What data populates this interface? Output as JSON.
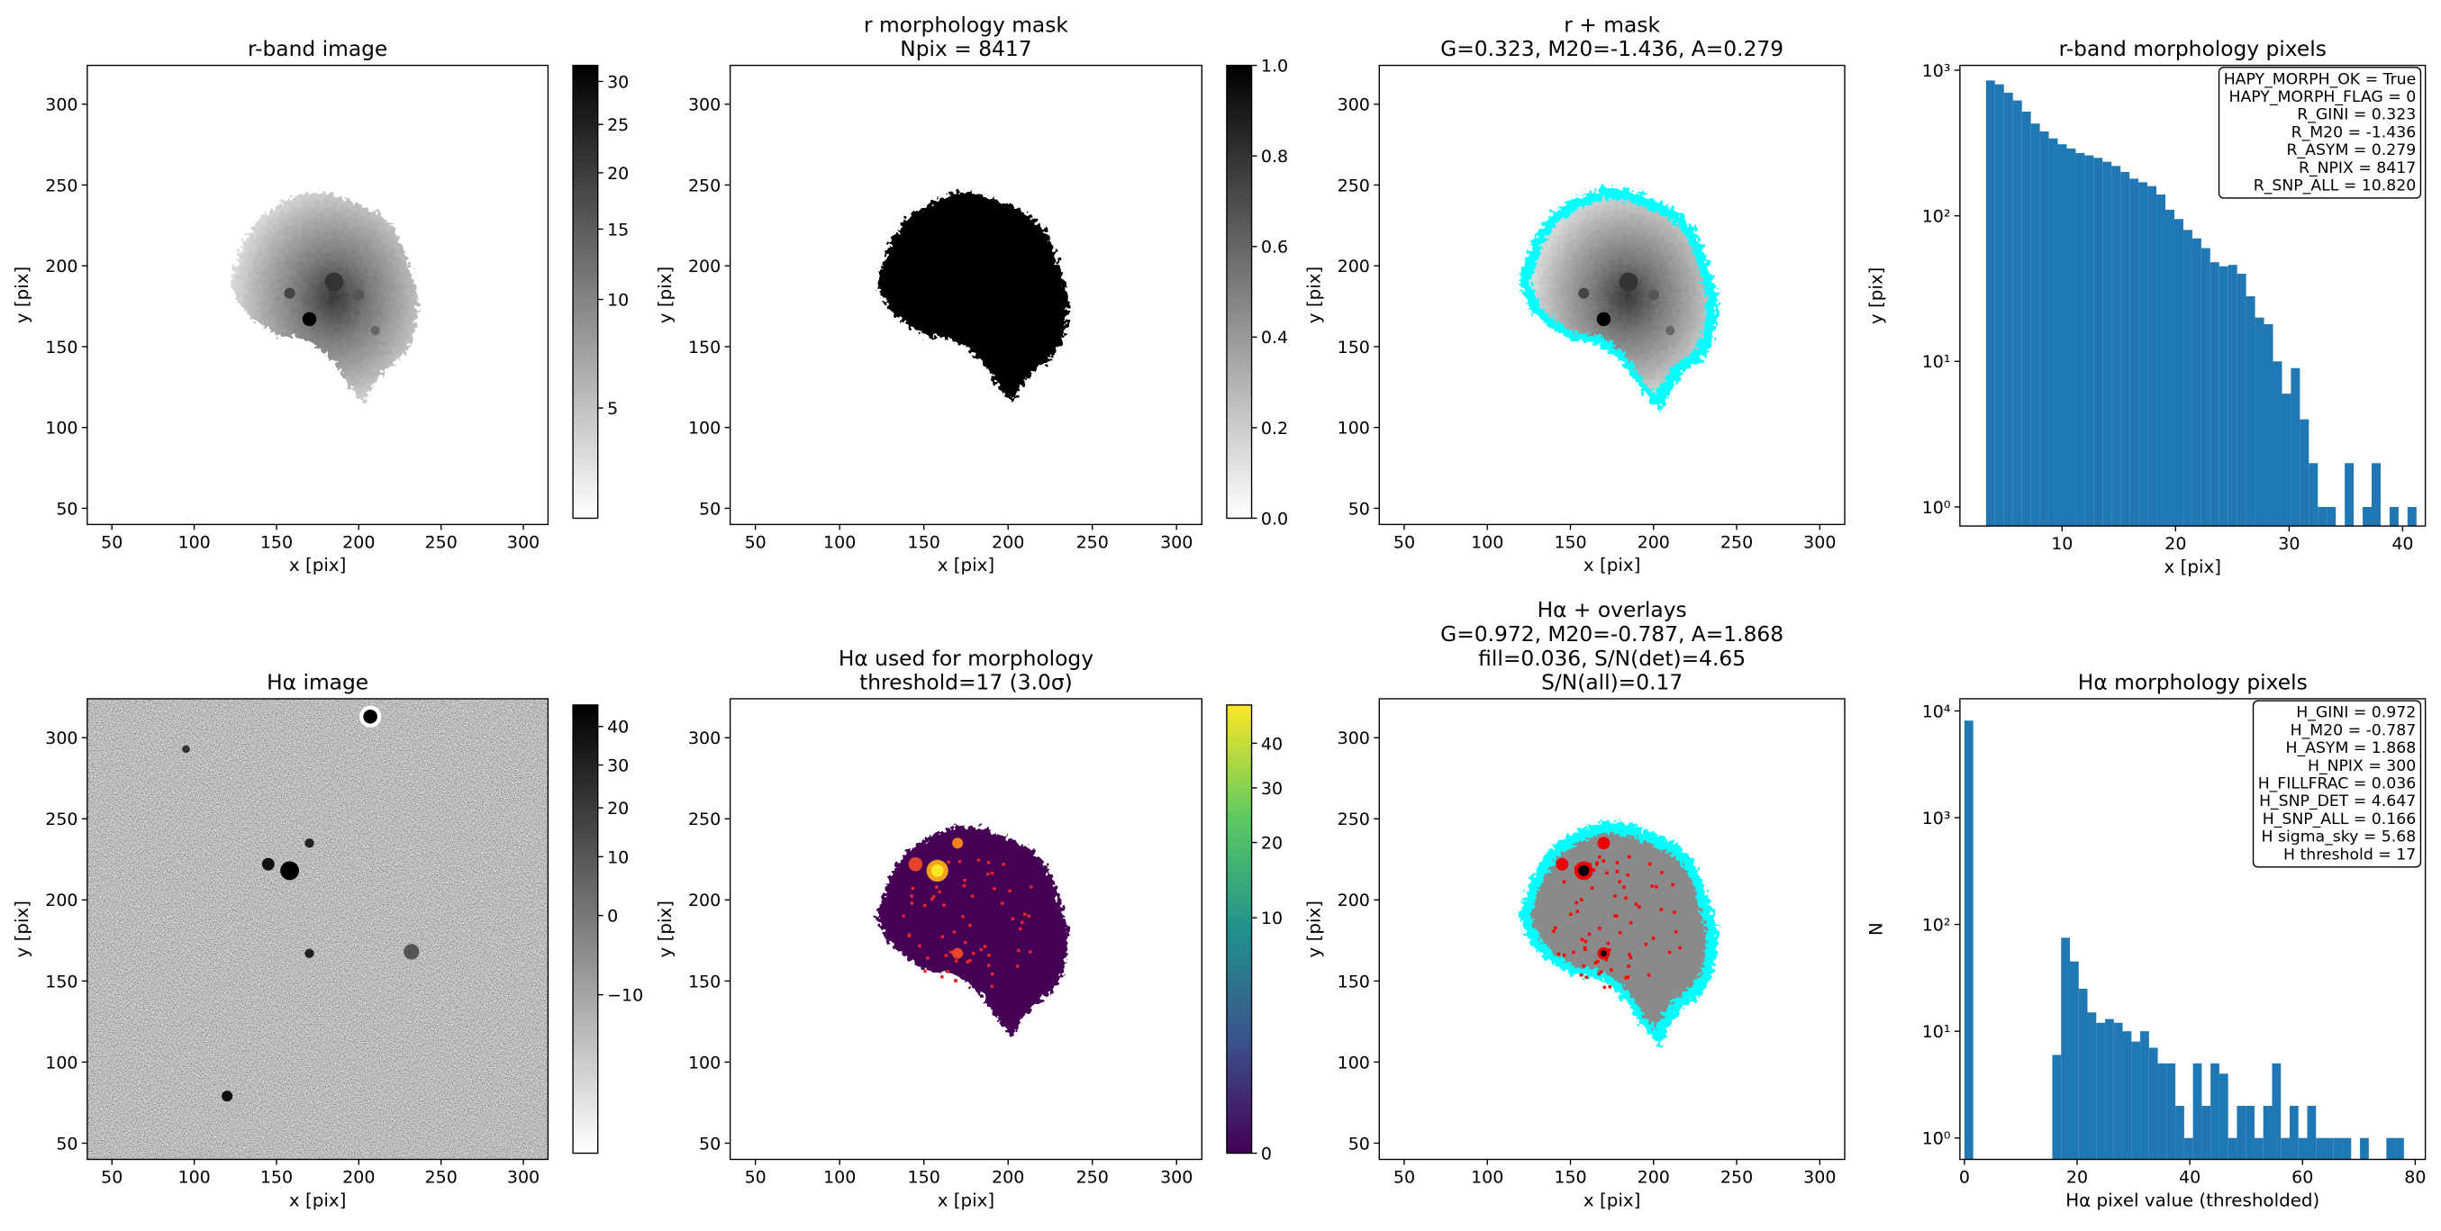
{
  "chart_data": [
    {
      "type": "image",
      "title": [
        "r-band image"
      ],
      "xlabel": "x [pix]",
      "ylabel": "y [pix]",
      "xlim": [
        35,
        315
      ],
      "ylim": [
        40,
        324
      ],
      "xticks": [
        50,
        100,
        150,
        200,
        250,
        300
      ],
      "yticks": [
        50,
        100,
        150,
        200,
        250,
        300
      ],
      "colorbar": {
        "lim": [
          3.3,
          32
        ],
        "gamma": 0.5,
        "cmap": "gray_r",
        "ticks": [
          5,
          10,
          15,
          20,
          25,
          30
        ]
      }
    },
    {
      "type": "image",
      "title": [
        "r morphology mask",
        "Npix = 8417"
      ],
      "xlabel": "x [pix]",
      "ylabel": "y [pix]",
      "xlim": [
        35,
        315
      ],
      "ylim": [
        40,
        324
      ],
      "xticks": [
        50,
        100,
        150,
        200,
        250,
        300
      ],
      "yticks": [
        50,
        100,
        150,
        200,
        250,
        300
      ],
      "colorbar": {
        "lim": [
          0,
          1
        ],
        "gamma": 1,
        "cmap": "gray_r",
        "ticks": [
          {
            "value": 0,
            "label": "0.0"
          },
          {
            "value": 0.2,
            "label": "0.2"
          },
          {
            "value": 0.4,
            "label": "0.4"
          },
          {
            "value": 0.6,
            "label": "0.6"
          },
          {
            "value": 0.8,
            "label": "0.8"
          },
          {
            "value": 1,
            "label": "1.0"
          }
        ]
      }
    },
    {
      "type": "image",
      "title": [
        "r + mask",
        "G=0.323, M20=-1.436, A=0.279"
      ],
      "xlabel": "x [pix]",
      "ylabel": "y [pix]",
      "xlim": [
        35,
        315
      ],
      "ylim": [
        40,
        324
      ],
      "xticks": [
        50,
        100,
        150,
        200,
        250,
        300
      ],
      "yticks": [
        50,
        100,
        150,
        200,
        250,
        300
      ]
    },
    {
      "type": "histogram",
      "title": [
        "r-band morphology pixels"
      ],
      "xlabel": "x [pix]",
      "ylabel": "y [pix]",
      "color": "#1f77b4",
      "yscale": "log",
      "xlim": [
        1,
        42
      ],
      "ylim": [
        0.74,
        1080
      ],
      "xticks": [
        10,
        20,
        30,
        40
      ],
      "yticks": [
        {
          "value": 1,
          "label": "10⁰"
        },
        {
          "value": 10,
          "label": "10¹"
        },
        {
          "value": 100,
          "label": "10²"
        },
        {
          "value": 1000,
          "label": "10³"
        }
      ],
      "bins": [
        3.3,
        4.09,
        4.88,
        5.67,
        6.46,
        7.25,
        8.04,
        8.83,
        9.62,
        10.41,
        11.2,
        11.99,
        12.78,
        13.57,
        14.36,
        15.15,
        15.94,
        16.73,
        17.52,
        18.31,
        19.1,
        19.89,
        20.68,
        21.47,
        22.26,
        23.05,
        23.84,
        24.63,
        25.42,
        26.21,
        27.0,
        27.79,
        28.58,
        29.37,
        30.16,
        30.95,
        31.74,
        32.53,
        33.32,
        34.11,
        34.9,
        35.69,
        36.48,
        37.27,
        38.06,
        38.85,
        39.64,
        40.43,
        41.22
      ],
      "values": [
        850,
        800,
        700,
        620,
        520,
        430,
        380,
        340,
        310,
        290,
        270,
        260,
        250,
        235,
        220,
        200,
        180,
        170,
        160,
        140,
        110,
        95,
        80,
        70,
        60,
        48,
        45,
        46,
        40,
        28,
        20,
        18,
        10,
        6,
        9,
        4,
        2,
        1,
        1,
        0,
        2,
        0,
        1,
        2,
        0,
        1,
        0,
        1
      ],
      "annotation_loc": "upper right",
      "annotation": [
        "HAPY_MORPH_OK = True",
        "HAPY_MORPH_FLAG = 0",
        "R_GINI = 0.323",
        "R_M20 = -1.436",
        "R_ASYM = 0.279",
        "R_NPIX = 8417",
        "R_SNP_ALL = 10.820"
      ]
    },
    {
      "type": "image",
      "title": [
        "Hα image"
      ],
      "xlabel": "x [pix]",
      "ylabel": "y [pix]",
      "xlim": [
        35,
        315
      ],
      "ylim": [
        40,
        324
      ],
      "xticks": [
        50,
        100,
        150,
        200,
        250,
        300
      ],
      "yticks": [
        50,
        100,
        150,
        200,
        250,
        300
      ],
      "colorbar": {
        "lim": [
          -18,
          46
        ],
        "gamma": 0.5,
        "cmap": "gray_r",
        "ticks": [
          {
            "value": -10,
            "label": "−10"
          },
          0,
          10,
          20,
          30,
          40
        ]
      }
    },
    {
      "type": "image",
      "title": [
        "Hα used for morphology",
        "threshold=17 (3.0σ)"
      ],
      "xlabel": "x [pix]",
      "ylabel": "y [pix]",
      "xlim": [
        35,
        315
      ],
      "ylim": [
        40,
        324
      ],
      "xticks": [
        50,
        100,
        150,
        200,
        250,
        300
      ],
      "yticks": [
        50,
        100,
        150,
        200,
        250,
        300
      ],
      "colorbar": {
        "lim": [
          0,
          50
        ],
        "gamma": 0.4,
        "cmap": "viridis",
        "ticks": [
          0,
          10,
          20,
          30,
          40
        ]
      }
    },
    {
      "type": "image",
      "title": [
        "Hα + overlays",
        "G=0.972, M20=-0.787, A=1.868",
        "fill=0.036, S/N(det)=4.65",
        "S/N(all)=0.17"
      ],
      "xlabel": "x [pix]",
      "ylabel": "y [pix]",
      "xlim": [
        35,
        315
      ],
      "ylim": [
        40,
        324
      ],
      "xticks": [
        50,
        100,
        150,
        200,
        250,
        300
      ],
      "yticks": [
        50,
        100,
        150,
        200,
        250,
        300
      ]
    },
    {
      "type": "histogram",
      "title": [
        "Hα morphology pixels"
      ],
      "xlabel": "Hα pixel value (thresholded)",
      "ylabel": "N",
      "color": "#1f77b4",
      "yscale": "log",
      "xlim": [
        -0.8,
        81.8
      ],
      "ylim": [
        0.63,
        13000
      ],
      "xticks": [
        0,
        20,
        40,
        60,
        80
      ],
      "yticks": [
        {
          "value": 1,
          "label": "10⁰"
        },
        {
          "value": 10,
          "label": "10¹"
        },
        {
          "value": 100,
          "label": "10²"
        },
        {
          "value": 1000,
          "label": "10³"
        },
        {
          "value": 10000,
          "label": "10⁴"
        }
      ],
      "bins": [
        0,
        1.56,
        3.12,
        4.68,
        6.24,
        7.8,
        9.36,
        10.92,
        12.48,
        14.04,
        15.6,
        17.16,
        18.72,
        20.28,
        21.84,
        23.4,
        24.96,
        26.52,
        28.08,
        29.64,
        31.2,
        32.76,
        34.32,
        35.88,
        37.44,
        39,
        40.56,
        42.12,
        43.68,
        45.24,
        46.8,
        48.36,
        49.92,
        51.48,
        53.04,
        54.6,
        56.16,
        57.72,
        59.28,
        60.84,
        62.4,
        63.96,
        65.52,
        67.08,
        68.64,
        70.2,
        71.76,
        73.32,
        74.88,
        76.44,
        78
      ],
      "values": [
        8117,
        0,
        0,
        0,
        0,
        0,
        0,
        0,
        0,
        0,
        6,
        75,
        45,
        25,
        15,
        12,
        13,
        12,
        10,
        8,
        10,
        7,
        5,
        5,
        2,
        1,
        5,
        2,
        5,
        4,
        1,
        2,
        2,
        1,
        2,
        5,
        1,
        2,
        1,
        2,
        1,
        1,
        1,
        1,
        0,
        1,
        0,
        0,
        1,
        1
      ],
      "annotation_loc": "upper right",
      "annotation": [
        "H_GINI = 0.972",
        "H_M20 = -0.787",
        "H_ASYM = 1.868",
        "H_NPIX = 300",
        "H_FILLFRAC = 0.036",
        "H_SNP_DET = 4.647",
        "H_SNP_ALL = 0.166",
        "H sigma_sky = 5.68",
        "H threshold = 17"
      ]
    }
  ]
}
